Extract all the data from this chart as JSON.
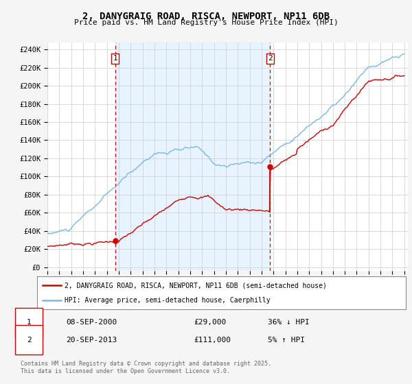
{
  "title": "2, DANYGRAIG ROAD, RISCA, NEWPORT, NP11 6DB",
  "subtitle": "Price paid vs. HM Land Registry's House Price Index (HPI)",
  "ylabel_ticks": [
    "£0",
    "£20K",
    "£40K",
    "£60K",
    "£80K",
    "£100K",
    "£120K",
    "£140K",
    "£160K",
    "£180K",
    "£200K",
    "£220K",
    "£240K"
  ],
  "ytick_values": [
    0,
    20000,
    40000,
    60000,
    80000,
    100000,
    120000,
    140000,
    160000,
    180000,
    200000,
    220000,
    240000
  ],
  "hpi_color": "#7ab8e8",
  "price_color": "#cc0000",
  "vline_color": "#cc0000",
  "shade_color": "#ddeeff",
  "sale1_year": 2000.69,
  "sale1_price": 29000,
  "sale2_year": 2013.72,
  "sale2_price": 111000,
  "legend_entry1": "2, DANYGRAIG ROAD, RISCA, NEWPORT, NP11 6DB (semi-detached house)",
  "legend_entry2": "HPI: Average price, semi-detached house, Caerphilly",
  "footnote": "Contains HM Land Registry data © Crown copyright and database right 2025.\nThis data is licensed under the Open Government Licence v3.0.",
  "background_color": "#f5f5f5",
  "plot_background": "#ffffff",
  "grid_color": "#cccccc"
}
